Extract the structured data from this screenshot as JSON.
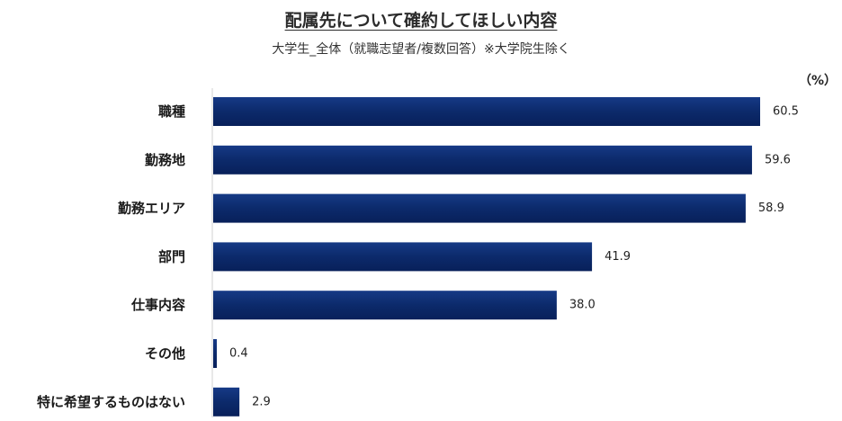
{
  "chart_data": {
    "type": "bar",
    "orientation": "horizontal",
    "title": "配属先について確約してほしい内容",
    "subtitle": "大学生_全体（就職志望者/複数回答）※大学院生除く",
    "unit": "（%）",
    "categories": [
      "職種",
      "勤務地",
      "勤務エリア",
      "部門",
      "仕事内容",
      "その他",
      "特に希望するものはない"
    ],
    "values": [
      60.5,
      59.6,
      58.9,
      41.9,
      38.0,
      0.4,
      2.9
    ],
    "value_labels": [
      "60.5",
      "59.6",
      "58.9",
      "41.9",
      "38.0",
      "0.4",
      "2.9"
    ],
    "xlim": [
      0,
      60.5
    ],
    "bar_color": "#0c2a6b",
    "grid": false,
    "legend": "none"
  }
}
